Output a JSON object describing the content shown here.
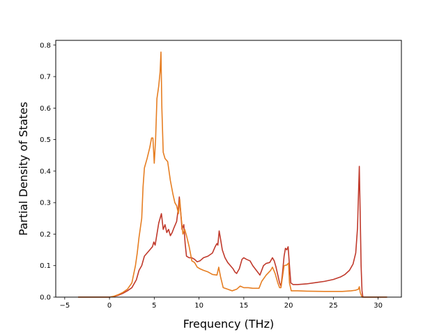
{
  "chart_data": {
    "type": "line",
    "title": "",
    "xlabel": "Frequency (THz)",
    "ylabel": "Partial Density of States",
    "xlim": [
      -6.0,
      32.6
    ],
    "ylim": [
      0.0,
      0.815
    ],
    "xticks": [
      -5,
      0,
      5,
      10,
      15,
      20,
      25,
      30
    ],
    "xtick_labels": [
      "−5",
      "0",
      "5",
      "10",
      "15",
      "20",
      "25",
      "30"
    ],
    "yticks": [
      0.0,
      0.1,
      0.2,
      0.3,
      0.4,
      0.5,
      0.6,
      0.7,
      0.8
    ],
    "ytick_labels": [
      "0.0",
      "0.1",
      "0.2",
      "0.3",
      "0.4",
      "0.5",
      "0.6",
      "0.7",
      "0.8"
    ],
    "grid": false,
    "legend": "none",
    "series": [
      {
        "color": "#c0392b",
        "points": [
          [
            -3.5,
            0.0
          ],
          [
            0.0,
            0.0
          ],
          [
            0.5,
            0.002
          ],
          [
            1.0,
            0.006
          ],
          [
            1.5,
            0.012
          ],
          [
            2.0,
            0.02
          ],
          [
            2.5,
            0.03
          ],
          [
            3.0,
            0.055
          ],
          [
            3.3,
            0.085
          ],
          [
            3.6,
            0.1
          ],
          [
            3.9,
            0.13
          ],
          [
            4.2,
            0.14
          ],
          [
            4.5,
            0.15
          ],
          [
            4.8,
            0.16
          ],
          [
            4.95,
            0.175
          ],
          [
            5.1,
            0.165
          ],
          [
            5.3,
            0.2
          ],
          [
            5.5,
            0.235
          ],
          [
            5.8,
            0.265
          ],
          [
            6.0,
            0.215
          ],
          [
            6.2,
            0.23
          ],
          [
            6.4,
            0.205
          ],
          [
            6.6,
            0.215
          ],
          [
            6.8,
            0.195
          ],
          [
            7.0,
            0.205
          ],
          [
            7.2,
            0.22
          ],
          [
            7.5,
            0.24
          ],
          [
            7.7,
            0.285
          ],
          [
            7.8,
            0.318
          ],
          [
            7.95,
            0.27
          ],
          [
            8.1,
            0.215
          ],
          [
            8.3,
            0.23
          ],
          [
            8.45,
            0.17
          ],
          [
            8.6,
            0.13
          ],
          [
            8.9,
            0.125
          ],
          [
            9.2,
            0.125
          ],
          [
            9.5,
            0.12
          ],
          [
            9.8,
            0.112
          ],
          [
            10.1,
            0.115
          ],
          [
            10.5,
            0.125
          ],
          [
            11.0,
            0.13
          ],
          [
            11.5,
            0.14
          ],
          [
            11.8,
            0.16
          ],
          [
            12.0,
            0.17
          ],
          [
            12.1,
            0.165
          ],
          [
            12.25,
            0.21
          ],
          [
            12.4,
            0.185
          ],
          [
            12.6,
            0.15
          ],
          [
            12.9,
            0.125
          ],
          [
            13.2,
            0.11
          ],
          [
            13.5,
            0.1
          ],
          [
            13.8,
            0.09
          ],
          [
            14.0,
            0.08
          ],
          [
            14.2,
            0.075
          ],
          [
            14.5,
            0.09
          ],
          [
            14.8,
            0.12
          ],
          [
            15.0,
            0.125
          ],
          [
            15.3,
            0.12
          ],
          [
            15.7,
            0.115
          ],
          [
            16.0,
            0.1
          ],
          [
            16.4,
            0.085
          ],
          [
            16.8,
            0.07
          ],
          [
            17.2,
            0.1
          ],
          [
            17.5,
            0.107
          ],
          [
            17.9,
            0.11
          ],
          [
            18.2,
            0.125
          ],
          [
            18.4,
            0.115
          ],
          [
            18.6,
            0.095
          ],
          [
            18.8,
            0.07
          ],
          [
            19.0,
            0.045
          ],
          [
            19.15,
            0.035
          ],
          [
            19.3,
            0.07
          ],
          [
            19.5,
            0.13
          ],
          [
            19.65,
            0.155
          ],
          [
            19.8,
            0.15
          ],
          [
            19.95,
            0.16
          ],
          [
            20.1,
            0.1
          ],
          [
            20.25,
            0.045
          ],
          [
            20.5,
            0.04
          ],
          [
            21.0,
            0.04
          ],
          [
            22.0,
            0.042
          ],
          [
            23.0,
            0.046
          ],
          [
            24.0,
            0.05
          ],
          [
            25.0,
            0.056
          ],
          [
            25.8,
            0.064
          ],
          [
            26.3,
            0.072
          ],
          [
            26.8,
            0.085
          ],
          [
            27.2,
            0.105
          ],
          [
            27.5,
            0.14
          ],
          [
            27.7,
            0.22
          ],
          [
            27.8,
            0.32
          ],
          [
            27.9,
            0.415
          ],
          [
            28.0,
            0.26
          ],
          [
            28.1,
            0.1
          ],
          [
            28.2,
            0.02
          ],
          [
            28.3,
            0.0
          ],
          [
            31.0,
            0.0
          ]
        ]
      },
      {
        "color": "#e67e22",
        "points": [
          [
            -3.5,
            0.0
          ],
          [
            0.0,
            0.0
          ],
          [
            0.5,
            0.003
          ],
          [
            1.0,
            0.008
          ],
          [
            1.5,
            0.015
          ],
          [
            2.0,
            0.025
          ],
          [
            2.5,
            0.045
          ],
          [
            2.9,
            0.1
          ],
          [
            3.1,
            0.14
          ],
          [
            3.3,
            0.19
          ],
          [
            3.6,
            0.25
          ],
          [
            3.75,
            0.35
          ],
          [
            3.9,
            0.41
          ],
          [
            4.2,
            0.44
          ],
          [
            4.5,
            0.475
          ],
          [
            4.7,
            0.505
          ],
          [
            4.85,
            0.505
          ],
          [
            5.0,
            0.425
          ],
          [
            5.15,
            0.5
          ],
          [
            5.3,
            0.63
          ],
          [
            5.5,
            0.67
          ],
          [
            5.65,
            0.715
          ],
          [
            5.75,
            0.778
          ],
          [
            5.85,
            0.6
          ],
          [
            6.0,
            0.46
          ],
          [
            6.2,
            0.44
          ],
          [
            6.5,
            0.43
          ],
          [
            6.8,
            0.37
          ],
          [
            7.1,
            0.325
          ],
          [
            7.3,
            0.3
          ],
          [
            7.5,
            0.29
          ],
          [
            7.7,
            0.265
          ],
          [
            7.85,
            0.31
          ],
          [
            8.0,
            0.255
          ],
          [
            8.2,
            0.2
          ],
          [
            8.4,
            0.215
          ],
          [
            8.6,
            0.195
          ],
          [
            8.9,
            0.16
          ],
          [
            9.2,
            0.115
          ],
          [
            9.5,
            0.11
          ],
          [
            9.8,
            0.095
          ],
          [
            10.1,
            0.09
          ],
          [
            10.5,
            0.085
          ],
          [
            11.0,
            0.08
          ],
          [
            11.5,
            0.072
          ],
          [
            12.0,
            0.07
          ],
          [
            12.2,
            0.095
          ],
          [
            12.4,
            0.065
          ],
          [
            12.7,
            0.03
          ],
          [
            13.2,
            0.025
          ],
          [
            13.7,
            0.02
          ],
          [
            14.2,
            0.025
          ],
          [
            14.6,
            0.035
          ],
          [
            15.0,
            0.03
          ],
          [
            15.5,
            0.03
          ],
          [
            16.0,
            0.028
          ],
          [
            16.7,
            0.028
          ],
          [
            17.0,
            0.05
          ],
          [
            17.5,
            0.07
          ],
          [
            18.0,
            0.085
          ],
          [
            18.2,
            0.095
          ],
          [
            18.5,
            0.075
          ],
          [
            18.8,
            0.045
          ],
          [
            19.0,
            0.03
          ],
          [
            19.15,
            0.03
          ],
          [
            19.3,
            0.06
          ],
          [
            19.5,
            0.1
          ],
          [
            19.8,
            0.102
          ],
          [
            20.0,
            0.108
          ],
          [
            20.1,
            0.045
          ],
          [
            20.3,
            0.02
          ],
          [
            21.0,
            0.02
          ],
          [
            22.0,
            0.019
          ],
          [
            24.0,
            0.018
          ],
          [
            26.0,
            0.018
          ],
          [
            27.0,
            0.02
          ],
          [
            27.5,
            0.022
          ],
          [
            27.8,
            0.025
          ],
          [
            27.9,
            0.033
          ],
          [
            28.0,
            0.015
          ],
          [
            28.2,
            0.0
          ],
          [
            31.0,
            0.0
          ]
        ]
      }
    ]
  }
}
